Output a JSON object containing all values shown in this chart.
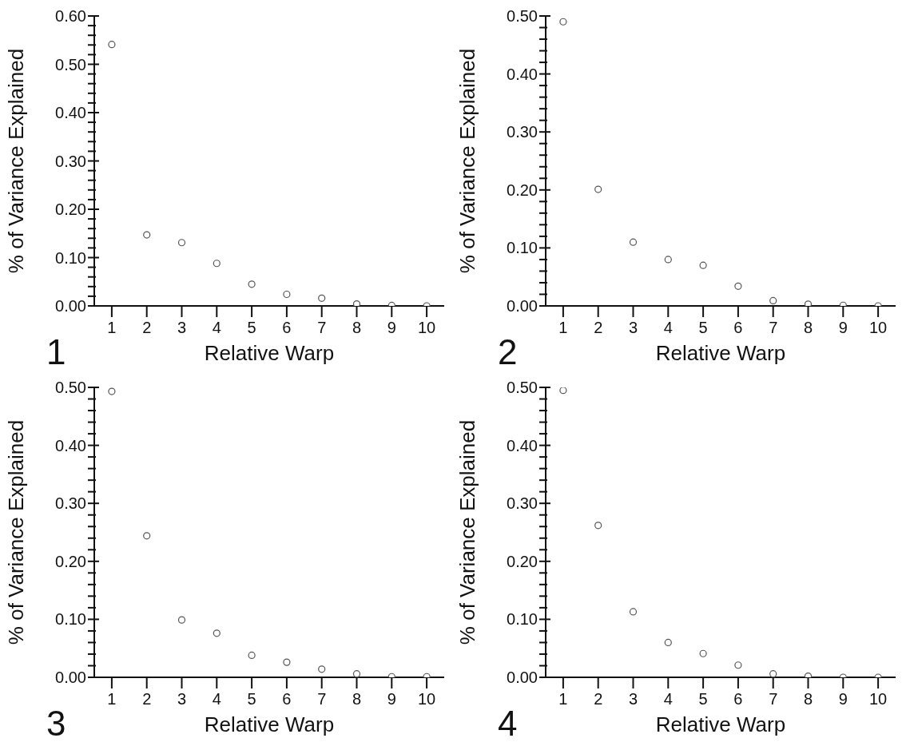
{
  "chart_data": [
    {
      "type": "scatter",
      "xlabel": "Relative Warp",
      "ylabel": "% of Variance Explained",
      "annotations": [
        "1"
      ],
      "marker": "circle",
      "x": [
        1,
        2,
        3,
        4,
        5,
        6,
        7,
        8,
        9,
        10
      ],
      "series": [
        {
          "color": "#555555",
          "values": [
            0.541,
            0.147,
            0.131,
            0.088,
            0.045,
            0.024,
            0.016,
            0.004,
            0.001,
            0
          ]
        }
      ],
      "xlim": [
        0.5,
        10.5
      ],
      "xticks": [
        1,
        2,
        3,
        4,
        5,
        6,
        7,
        8,
        9,
        10
      ],
      "ylim": [
        0,
        0.6
      ],
      "yticks": [
        {
          "value": 0,
          "label": "0.00"
        },
        {
          "value": 0.02,
          "label": null
        },
        {
          "value": 0.04,
          "label": null
        },
        {
          "value": 0.06,
          "label": null
        },
        {
          "value": 0.08,
          "label": null
        },
        {
          "value": 0.1,
          "label": "0.10"
        },
        {
          "value": 0.12,
          "label": null
        },
        {
          "value": 0.14,
          "label": null
        },
        {
          "value": 0.16,
          "label": null
        },
        {
          "value": 0.18,
          "label": null
        },
        {
          "value": 0.2,
          "label": "0.20"
        },
        {
          "value": 0.22,
          "label": null
        },
        {
          "value": 0.24,
          "label": null
        },
        {
          "value": 0.26,
          "label": null
        },
        {
          "value": 0.28,
          "label": null
        },
        {
          "value": 0.3,
          "label": "0.30"
        },
        {
          "value": 0.32,
          "label": null
        },
        {
          "value": 0.34,
          "label": null
        },
        {
          "value": 0.36,
          "label": null
        },
        {
          "value": 0.38,
          "label": null
        },
        {
          "value": 0.4,
          "label": "0.40"
        },
        {
          "value": 0.42,
          "label": null
        },
        {
          "value": 0.44,
          "label": null
        },
        {
          "value": 0.46,
          "label": null
        },
        {
          "value": 0.48,
          "label": null
        },
        {
          "value": 0.5,
          "label": "0.50"
        },
        {
          "value": 0.52,
          "label": null
        },
        {
          "value": 0.54,
          "label": null
        },
        {
          "value": 0.56,
          "label": null
        },
        {
          "value": 0.58,
          "label": null
        },
        {
          "value": 0.6,
          "label": "0.60"
        }
      ],
      "grid": false,
      "legend": false
    },
    {
      "type": "scatter",
      "xlabel": "Relative Warp",
      "ylabel": "% of Variance Explained",
      "annotations": [
        "2"
      ],
      "marker": "circle",
      "x": [
        1,
        2,
        3,
        4,
        5,
        6,
        7,
        8,
        9,
        10
      ],
      "series": [
        {
          "color": "#555555",
          "values": [
            0.49,
            0.201,
            0.11,
            0.08,
            0.07,
            0.034,
            0.009,
            0.003,
            0.001,
            0
          ]
        }
      ],
      "xlim": [
        0.5,
        10.5
      ],
      "xticks": [
        1,
        2,
        3,
        4,
        5,
        6,
        7,
        8,
        9,
        10
      ],
      "ylim": [
        0,
        0.5
      ],
      "yticks": [
        {
          "value": 0,
          "label": "0.00"
        },
        {
          "value": 0.02,
          "label": null
        },
        {
          "value": 0.04,
          "label": null
        },
        {
          "value": 0.06,
          "label": null
        },
        {
          "value": 0.08,
          "label": null
        },
        {
          "value": 0.1,
          "label": "0.10"
        },
        {
          "value": 0.12,
          "label": null
        },
        {
          "value": 0.14,
          "label": null
        },
        {
          "value": 0.16,
          "label": null
        },
        {
          "value": 0.18,
          "label": null
        },
        {
          "value": 0.2,
          "label": "0.20"
        },
        {
          "value": 0.22,
          "label": null
        },
        {
          "value": 0.24,
          "label": null
        },
        {
          "value": 0.26,
          "label": null
        },
        {
          "value": 0.28,
          "label": null
        },
        {
          "value": 0.3,
          "label": "0.30"
        },
        {
          "value": 0.32,
          "label": null
        },
        {
          "value": 0.34,
          "label": null
        },
        {
          "value": 0.36,
          "label": null
        },
        {
          "value": 0.38,
          "label": null
        },
        {
          "value": 0.4,
          "label": "0.40"
        },
        {
          "value": 0.42,
          "label": null
        },
        {
          "value": 0.44,
          "label": null
        },
        {
          "value": 0.46,
          "label": null
        },
        {
          "value": 0.48,
          "label": null
        },
        {
          "value": 0.5,
          "label": "0.50"
        }
      ],
      "grid": false,
      "legend": false
    },
    {
      "type": "scatter",
      "xlabel": "Relative Warp",
      "ylabel": "% of Variance Explained",
      "annotations": [
        "3"
      ],
      "marker": "circle",
      "x": [
        1,
        2,
        3,
        4,
        5,
        6,
        7,
        8,
        9,
        10
      ],
      "series": [
        {
          "color": "#555555",
          "values": [
            0.493,
            0.244,
            0.099,
            0.076,
            0.038,
            0.026,
            0.014,
            0.006,
            0.001,
            0.001
          ]
        }
      ],
      "xlim": [
        0.5,
        10.5
      ],
      "xticks": [
        1,
        2,
        3,
        4,
        5,
        6,
        7,
        8,
        9,
        10
      ],
      "ylim": [
        0,
        0.5
      ],
      "yticks": [
        {
          "value": 0,
          "label": "0.00"
        },
        {
          "value": 0.02,
          "label": null
        },
        {
          "value": 0.04,
          "label": null
        },
        {
          "value": 0.06,
          "label": null
        },
        {
          "value": 0.08,
          "label": null
        },
        {
          "value": 0.1,
          "label": "0.10"
        },
        {
          "value": 0.12,
          "label": null
        },
        {
          "value": 0.14,
          "label": null
        },
        {
          "value": 0.16,
          "label": null
        },
        {
          "value": 0.18,
          "label": null
        },
        {
          "value": 0.2,
          "label": "0.20"
        },
        {
          "value": 0.22,
          "label": null
        },
        {
          "value": 0.24,
          "label": null
        },
        {
          "value": 0.26,
          "label": null
        },
        {
          "value": 0.28,
          "label": null
        },
        {
          "value": 0.3,
          "label": "0.30"
        },
        {
          "value": 0.32,
          "label": null
        },
        {
          "value": 0.34,
          "label": null
        },
        {
          "value": 0.36,
          "label": null
        },
        {
          "value": 0.38,
          "label": null
        },
        {
          "value": 0.4,
          "label": "0.40"
        },
        {
          "value": 0.42,
          "label": null
        },
        {
          "value": 0.44,
          "label": null
        },
        {
          "value": 0.46,
          "label": null
        },
        {
          "value": 0.48,
          "label": null
        },
        {
          "value": 0.5,
          "label": "0.50"
        }
      ],
      "grid": false,
      "legend": false
    },
    {
      "type": "scatter",
      "xlabel": "Relative Warp",
      "ylabel": "% of Variance Explained",
      "annotations": [
        "4"
      ],
      "marker": "circle",
      "x": [
        1,
        2,
        3,
        4,
        5,
        6,
        7,
        8,
        9,
        10
      ],
      "series": [
        {
          "color": "#555555",
          "values": [
            0.495,
            0.262,
            0.113,
            0.06,
            0.041,
            0.021,
            0.006,
            0.002,
            0,
            0
          ]
        }
      ],
      "xlim": [
        0.5,
        10.5
      ],
      "xticks": [
        1,
        2,
        3,
        4,
        5,
        6,
        7,
        8,
        9,
        10
      ],
      "ylim": [
        0,
        0.5
      ],
      "yticks": [
        {
          "value": 0,
          "label": "0.00"
        },
        {
          "value": 0.02,
          "label": null
        },
        {
          "value": 0.04,
          "label": null
        },
        {
          "value": 0.06,
          "label": null
        },
        {
          "value": 0.08,
          "label": null
        },
        {
          "value": 0.1,
          "label": "0.10"
        },
        {
          "value": 0.12,
          "label": null
        },
        {
          "value": 0.14,
          "label": null
        },
        {
          "value": 0.16,
          "label": null
        },
        {
          "value": 0.18,
          "label": null
        },
        {
          "value": 0.2,
          "label": "0.20"
        },
        {
          "value": 0.22,
          "label": null
        },
        {
          "value": 0.24,
          "label": null
        },
        {
          "value": 0.26,
          "label": null
        },
        {
          "value": 0.28,
          "label": null
        },
        {
          "value": 0.3,
          "label": "0.30"
        },
        {
          "value": 0.32,
          "label": null
        },
        {
          "value": 0.34,
          "label": null
        },
        {
          "value": 0.36,
          "label": null
        },
        {
          "value": 0.38,
          "label": null
        },
        {
          "value": 0.4,
          "label": "0.40"
        },
        {
          "value": 0.42,
          "label": null
        },
        {
          "value": 0.44,
          "label": null
        },
        {
          "value": 0.46,
          "label": null
        },
        {
          "value": 0.48,
          "label": null
        },
        {
          "value": 0.5,
          "label": "0.50"
        }
      ],
      "grid": false,
      "legend": false
    }
  ]
}
